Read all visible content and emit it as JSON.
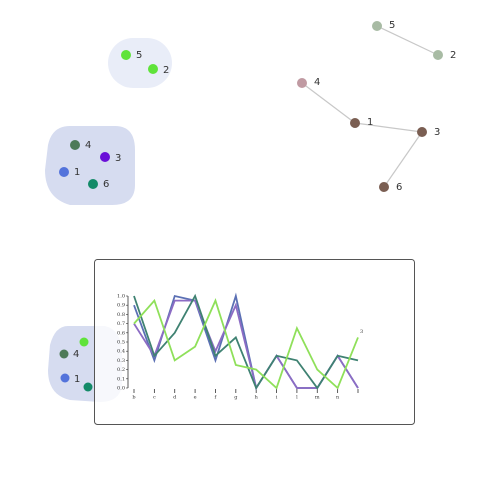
{
  "clusters": [
    {
      "nodes": [
        "5",
        "2"
      ]
    },
    {
      "nodes": [
        "4",
        "3",
        "1",
        "6"
      ]
    },
    {
      "nodes": [
        "4",
        "1"
      ]
    }
  ],
  "graph": {
    "nodes": [
      "5",
      "2",
      "4",
      "1",
      "3",
      "6"
    ]
  },
  "chart_data": {
    "type": "line",
    "categories": [
      "b",
      "c",
      "d",
      "e",
      "f",
      "g",
      "h",
      "i",
      "l",
      "m",
      "n",
      null
    ],
    "series": [
      {
        "color": "#5b70b4",
        "values": [
          0.9,
          0.3,
          1.0,
          0.95,
          0.3,
          1.0,
          0.0,
          0.35,
          0.0,
          0.0,
          0.35,
          0.0
        ]
      },
      {
        "color": "#8c6cc4",
        "values": [
          0.7,
          0.35,
          0.95,
          0.95,
          0.4,
          0.9,
          0.0,
          0.35,
          0.0,
          0.0,
          0.35,
          0.0
        ]
      },
      {
        "color": "#3f8272",
        "values": [
          1.0,
          0.35,
          0.6,
          1.0,
          0.35,
          0.55,
          0.0,
          0.35,
          0.3,
          0.0,
          0.35,
          0.3
        ]
      },
      {
        "color": "#8fe05a",
        "values": [
          0.7,
          0.95,
          0.3,
          0.45,
          0.95,
          0.25,
          0.2,
          0.0,
          0.65,
          0.2,
          0.0,
          0.55
        ]
      }
    ],
    "ylim": [
      0,
      1
    ],
    "yticks": [
      {
        "value": 0,
        "label": "0.0"
      },
      {
        "value": 0.1,
        "label": "0.1"
      },
      {
        "value": 0.2,
        "label": "0.2"
      },
      {
        "value": 0.3,
        "label": "0.3"
      },
      {
        "value": 0.4,
        "label": "0.4"
      },
      {
        "value": 0.5,
        "label": "0.5"
      },
      {
        "value": 0.6,
        "label": "0.6"
      },
      {
        "value": 0.7,
        "label": "0.7"
      },
      {
        "value": 0.8,
        "label": "0.8"
      },
      {
        "value": 0.9,
        "label": "0.9"
      },
      {
        "value": 1,
        "label": "1.0"
      }
    ],
    "annotation": "3"
  }
}
